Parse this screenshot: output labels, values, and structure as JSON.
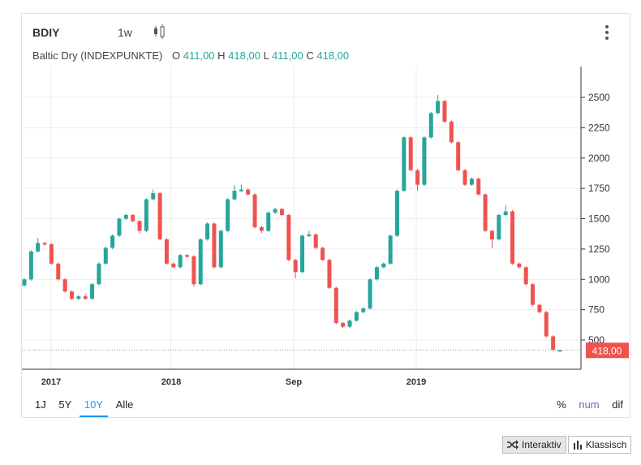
{
  "header": {
    "symbol": "BDIY",
    "interval": "1w",
    "chart_type_icon": "candlestick-icon",
    "menu_icon": "kebab-menu-icon"
  },
  "legend": {
    "name": "Baltic Dry (INDEXPUNKTE)",
    "o_label": "O",
    "o": "411,00",
    "h_label": "H",
    "h": "418,00",
    "l_label": "L",
    "l": "411,00",
    "c_label": "C",
    "c": "418,00"
  },
  "ranges": [
    {
      "label": "1J"
    },
    {
      "label": "5Y"
    },
    {
      "label": "10Y",
      "active": true
    },
    {
      "label": "Alle"
    }
  ],
  "modes": [
    {
      "label": "%"
    },
    {
      "label": "num",
      "active": true
    },
    {
      "label": "dif"
    }
  ],
  "buttons": {
    "interaktiv": "Interaktiv",
    "klassisch": "Klassisch"
  },
  "colors": {
    "up": "#26a69a",
    "down": "#ef5350",
    "accent": "#2196f3"
  },
  "chart_data": {
    "type": "candlestick",
    "y_ticks": [
      500,
      750,
      1000,
      1250,
      1500,
      1750,
      2000,
      2250,
      2500
    ],
    "ylim": [
      330,
      2750
    ],
    "x_tick_labels": [
      "2017",
      "2018",
      "Sep",
      "2019"
    ],
    "grid": true,
    "last_price_label": "418,00",
    "last_price": 418,
    "ohlc": [
      [
        950,
        1010,
        940,
        1000
      ],
      [
        1000,
        1240,
        990,
        1230
      ],
      [
        1230,
        1340,
        1220,
        1300
      ],
      [
        1300,
        1310,
        1280,
        1290
      ],
      [
        1290,
        1300,
        1120,
        1130
      ],
      [
        1130,
        1140,
        990,
        1000
      ],
      [
        1000,
        1010,
        890,
        900
      ],
      [
        900,
        910,
        830,
        840
      ],
      [
        840,
        870,
        830,
        860
      ],
      [
        860,
        880,
        830,
        840
      ],
      [
        840,
        970,
        830,
        960
      ],
      [
        960,
        1140,
        950,
        1130
      ],
      [
        1130,
        1270,
        1120,
        1260
      ],
      [
        1260,
        1370,
        1250,
        1360
      ],
      [
        1360,
        1510,
        1350,
        1500
      ],
      [
        1500,
        1540,
        1490,
        1530
      ],
      [
        1530,
        1540,
        1470,
        1480
      ],
      [
        1480,
        1490,
        1380,
        1400
      ],
      [
        1400,
        1670,
        1390,
        1660
      ],
      [
        1660,
        1740,
        1650,
        1710
      ],
      [
        1710,
        1720,
        1320,
        1330
      ],
      [
        1330,
        1340,
        1120,
        1130
      ],
      [
        1130,
        1140,
        1090,
        1100
      ],
      [
        1100,
        1210,
        1090,
        1200
      ],
      [
        1200,
        1210,
        1180,
        1190
      ],
      [
        1190,
        1200,
        940,
        960
      ],
      [
        960,
        1340,
        950,
        1330
      ],
      [
        1330,
        1470,
        1320,
        1460
      ],
      [
        1460,
        1470,
        1090,
        1100
      ],
      [
        1100,
        1410,
        1090,
        1400
      ],
      [
        1400,
        1670,
        1390,
        1660
      ],
      [
        1660,
        1780,
        1650,
        1730
      ],
      [
        1730,
        1780,
        1720,
        1740
      ],
      [
        1740,
        1750,
        1690,
        1700
      ],
      [
        1700,
        1710,
        1420,
        1430
      ],
      [
        1430,
        1440,
        1380,
        1400
      ],
      [
        1400,
        1560,
        1390,
        1550
      ],
      [
        1550,
        1590,
        1540,
        1580
      ],
      [
        1580,
        1590,
        1520,
        1530
      ],
      [
        1530,
        1540,
        1150,
        1160
      ],
      [
        1160,
        1170,
        1010,
        1060
      ],
      [
        1060,
        1370,
        1050,
        1360
      ],
      [
        1360,
        1400,
        1350,
        1370
      ],
      [
        1370,
        1380,
        1250,
        1260
      ],
      [
        1260,
        1270,
        1150,
        1160
      ],
      [
        1160,
        1170,
        920,
        930
      ],
      [
        930,
        940,
        630,
        640
      ],
      [
        640,
        650,
        600,
        610
      ],
      [
        610,
        670,
        600,
        660
      ],
      [
        660,
        740,
        650,
        730
      ],
      [
        730,
        770,
        720,
        760
      ],
      [
        760,
        1010,
        750,
        1000
      ],
      [
        1000,
        1110,
        990,
        1100
      ],
      [
        1100,
        1140,
        1090,
        1130
      ],
      [
        1130,
        1370,
        1120,
        1360
      ],
      [
        1360,
        1740,
        1350,
        1730
      ],
      [
        1730,
        2180,
        1720,
        2170
      ],
      [
        2170,
        2180,
        1890,
        1900
      ],
      [
        1900,
        1910,
        1730,
        1780
      ],
      [
        1780,
        2180,
        1770,
        2170
      ],
      [
        2170,
        2380,
        2160,
        2370
      ],
      [
        2370,
        2520,
        2360,
        2470
      ],
      [
        2470,
        2480,
        2290,
        2300
      ],
      [
        2300,
        2310,
        2120,
        2130
      ],
      [
        2130,
        2140,
        1890,
        1900
      ],
      [
        1900,
        1910,
        1770,
        1780
      ],
      [
        1780,
        1840,
        1770,
        1830
      ],
      [
        1830,
        1840,
        1690,
        1700
      ],
      [
        1700,
        1710,
        1390,
        1400
      ],
      [
        1400,
        1410,
        1260,
        1330
      ],
      [
        1330,
        1540,
        1320,
        1530
      ],
      [
        1530,
        1610,
        1520,
        1560
      ],
      [
        1560,
        1570,
        1120,
        1130
      ],
      [
        1130,
        1140,
        1090,
        1100
      ],
      [
        1100,
        1110,
        950,
        960
      ],
      [
        960,
        970,
        780,
        790
      ],
      [
        790,
        800,
        720,
        730
      ],
      [
        730,
        740,
        520,
        530
      ],
      [
        530,
        540,
        410,
        420
      ],
      [
        411,
        418,
        411,
        418
      ]
    ]
  }
}
